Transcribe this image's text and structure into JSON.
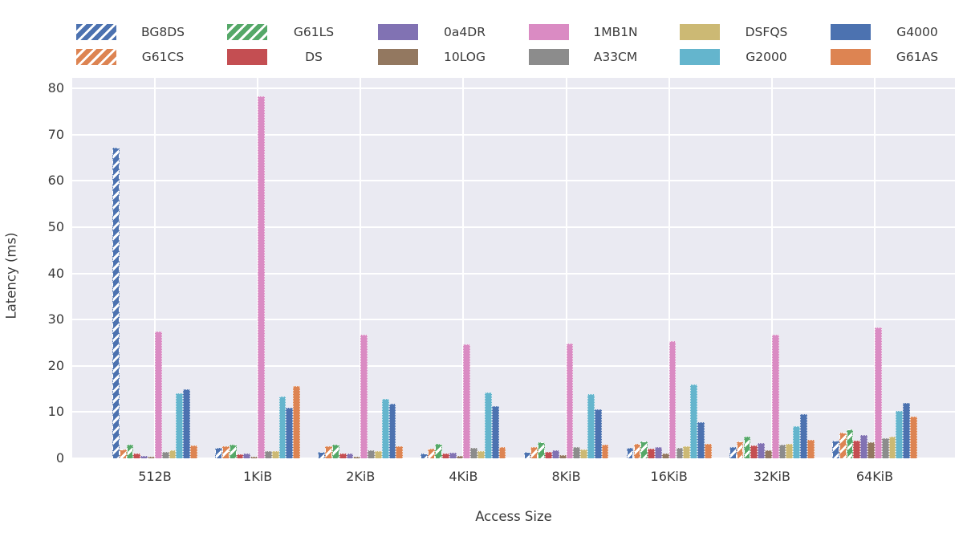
{
  "chart_data": {
    "type": "bar",
    "title": "",
    "xlabel": "Access Size",
    "ylabel": "Latency (ms)",
    "ylim": [
      0,
      80
    ],
    "yticks": [
      0,
      10,
      20,
      30,
      40,
      50,
      60,
      70,
      80
    ],
    "grid": true,
    "legend_position": "top",
    "legend_rows": 2,
    "legend_columns": 6,
    "categories": [
      "512B",
      "1KiB",
      "2KiB",
      "4KiB",
      "8KiB",
      "16KiB",
      "32KiB",
      "64KiB"
    ],
    "series": [
      {
        "name": "BG8DS",
        "color": "#4C72B0",
        "hatched": true,
        "values": [
          67.2,
          2.2,
          1.4,
          1.0,
          1.4,
          2.2,
          2.5,
          3.8
        ]
      },
      {
        "name": "G61CS",
        "color": "#DD8452",
        "hatched": true,
        "values": [
          1.9,
          2.6,
          2.6,
          2.1,
          2.5,
          3.2,
          3.6,
          5.6
        ]
      },
      {
        "name": "G61LS",
        "color": "#55A868",
        "hatched": true,
        "values": [
          2.9,
          3.0,
          3.0,
          3.1,
          3.5,
          3.6,
          4.6,
          6.2
        ]
      },
      {
        "name": "DS",
        "color": "#C44E52",
        "hatched": false,
        "values": [
          1.1,
          0.9,
          1.0,
          1.0,
          1.4,
          2.0,
          2.7,
          3.8
        ]
      },
      {
        "name": "0a4DR",
        "color": "#8172B3",
        "hatched": false,
        "values": [
          0.5,
          1.1,
          1.0,
          1.2,
          1.8,
          2.5,
          3.3,
          5.0
        ]
      },
      {
        "name": "10LOG",
        "color": "#937860",
        "hatched": false,
        "values": [
          0.3,
          0.4,
          0.4,
          0.5,
          0.7,
          1.0,
          1.8,
          3.4
        ]
      },
      {
        "name": "1MB1N",
        "color": "#DA8BC3",
        "hatched": false,
        "values": [
          27.5,
          78.3,
          26.8,
          24.7,
          24.8,
          25.3,
          26.7,
          28.2
        ]
      },
      {
        "name": "A33CM",
        "color": "#8C8C8C",
        "hatched": false,
        "values": [
          1.4,
          1.6,
          1.7,
          2.2,
          2.5,
          2.3,
          3.0,
          4.4
        ]
      },
      {
        "name": "DSFQS",
        "color": "#CCB974",
        "hatched": false,
        "values": [
          1.8,
          1.5,
          1.5,
          1.6,
          1.9,
          2.6,
          3.2,
          4.6
        ]
      },
      {
        "name": "G2000",
        "color": "#64B5CD",
        "hatched": false,
        "values": [
          14.0,
          13.4,
          12.9,
          14.3,
          13.9,
          15.9,
          7.0,
          10.3
        ]
      },
      {
        "name": "G4000",
        "color": "#4C72B0",
        "hatched": false,
        "values": [
          15.0,
          11.0,
          11.8,
          11.3,
          10.6,
          7.8,
          9.5,
          12.0
        ]
      },
      {
        "name": "G61AS",
        "color": "#DD8452",
        "hatched": false,
        "values": [
          2.8,
          15.7,
          2.6,
          2.5,
          2.9,
          3.2,
          4.0,
          9.1
        ]
      }
    ]
  },
  "colors": {
    "plot_background": "#EAEAF2",
    "gridline": "#FFFFFF",
    "text": "#3A3A3A"
  }
}
